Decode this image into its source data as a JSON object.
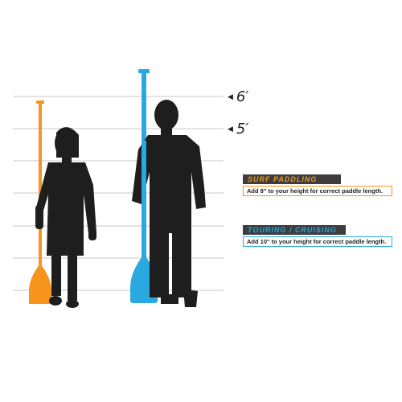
{
  "heights": {
    "six_ft": "6′",
    "five_ft": "5′"
  },
  "guides": {
    "surf": {
      "title": "SURF PADDLING",
      "text": "Add 8\" to your height for correct paddle length."
    },
    "touring": {
      "title": "TOURING / CRUISING",
      "text": "Add 10\" to your height for correct paddle length."
    }
  },
  "colors": {
    "surf_orange": "#f7941d",
    "touring_blue": "#29a9e0",
    "silhouette": "#1e1e1e",
    "header_bg": "#3d3d3d",
    "grid_line": "#c8c8c8"
  },
  "icons": {
    "pointer": "◀"
  }
}
